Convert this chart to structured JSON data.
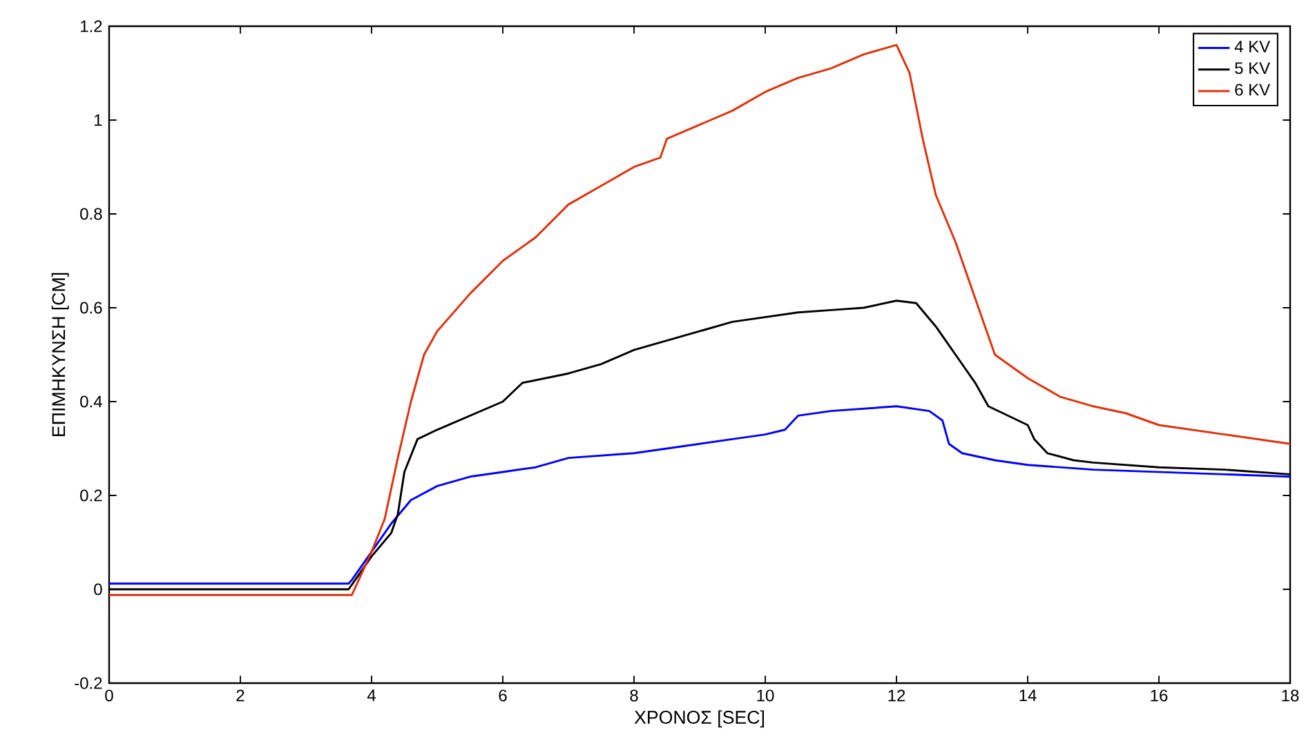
{
  "chart_data": {
    "type": "line",
    "xlabel": "ΧΡΟΝΟΣ [SEC]",
    "ylabel": "ΕΠΙΜΗΚΥΝΣΗ [CM]",
    "xlim": [
      0,
      18
    ],
    "ylim": [
      -0.2,
      1.2
    ],
    "xticks": [
      0,
      2,
      4,
      6,
      8,
      10,
      12,
      14,
      16,
      18
    ],
    "yticks": [
      -0.2,
      0,
      0.2,
      0.4,
      0.6,
      0.8,
      1,
      1.2
    ],
    "grid": false,
    "legend": "top right",
    "marker": "none",
    "line_style": "solid",
    "series": [
      {
        "name": "4 KV",
        "color": "#0000ff",
        "x": [
          0,
          1,
          2,
          3,
          3.65,
          3.7,
          4.0,
          4.3,
          4.6,
          5,
          5.5,
          6,
          6.5,
          7,
          7.5,
          8,
          8.5,
          9,
          9.5,
          10,
          10.3,
          10.5,
          11,
          11.5,
          12,
          12.5,
          12.7,
          12.8,
          13,
          13.5,
          14,
          15,
          16,
          17,
          18
        ],
        "values": [
          0.012,
          0.012,
          0.012,
          0.012,
          0.012,
          0.02,
          0.08,
          0.14,
          0.19,
          0.22,
          0.24,
          0.25,
          0.26,
          0.28,
          0.285,
          0.29,
          0.3,
          0.31,
          0.32,
          0.33,
          0.34,
          0.37,
          0.38,
          0.385,
          0.39,
          0.38,
          0.36,
          0.31,
          0.29,
          0.275,
          0.265,
          0.255,
          0.25,
          0.245,
          0.24
        ]
      },
      {
        "name": "5 KV",
        "color": "#000000",
        "x": [
          0,
          1,
          2,
          3,
          3.65,
          4.0,
          4.3,
          4.4,
          4.5,
          4.7,
          5,
          5.5,
          6,
          6.3,
          7,
          7.5,
          8,
          8.5,
          9,
          9.5,
          10,
          10.5,
          11,
          11.5,
          12,
          12.3,
          12.6,
          12.9,
          13.2,
          13.4,
          13.7,
          14,
          14.1,
          14.3,
          14.7,
          15,
          16,
          17,
          18
        ],
        "values": [
          0.0,
          0.0,
          0.0,
          0.0,
          0.0,
          0.07,
          0.12,
          0.16,
          0.25,
          0.32,
          0.34,
          0.37,
          0.4,
          0.44,
          0.46,
          0.48,
          0.51,
          0.53,
          0.55,
          0.57,
          0.58,
          0.59,
          0.595,
          0.6,
          0.615,
          0.61,
          0.56,
          0.5,
          0.44,
          0.39,
          0.37,
          0.35,
          0.32,
          0.29,
          0.275,
          0.27,
          0.26,
          0.255,
          0.245
        ]
      },
      {
        "name": "6 KV",
        "color": "#e0300a",
        "x": [
          0,
          1,
          2,
          3,
          3.7,
          4.0,
          4.2,
          4.4,
          4.6,
          4.8,
          5,
          5.5,
          6,
          6.5,
          7,
          7.5,
          8,
          8.4,
          8.5,
          9,
          9.5,
          10,
          10.5,
          11,
          11.5,
          12,
          12.2,
          12.4,
          12.6,
          12.9,
          13.2,
          13.5,
          14,
          14.5,
          15,
          15.5,
          16,
          17,
          18
        ],
        "values": [
          -0.012,
          -0.012,
          -0.012,
          -0.012,
          -0.012,
          0.08,
          0.15,
          0.28,
          0.4,
          0.5,
          0.55,
          0.63,
          0.7,
          0.75,
          0.82,
          0.86,
          0.9,
          0.92,
          0.96,
          0.99,
          1.02,
          1.06,
          1.09,
          1.11,
          1.14,
          1.16,
          1.1,
          0.96,
          0.84,
          0.74,
          0.62,
          0.5,
          0.45,
          0.41,
          0.39,
          0.375,
          0.35,
          0.33,
          0.31
        ]
      }
    ]
  }
}
